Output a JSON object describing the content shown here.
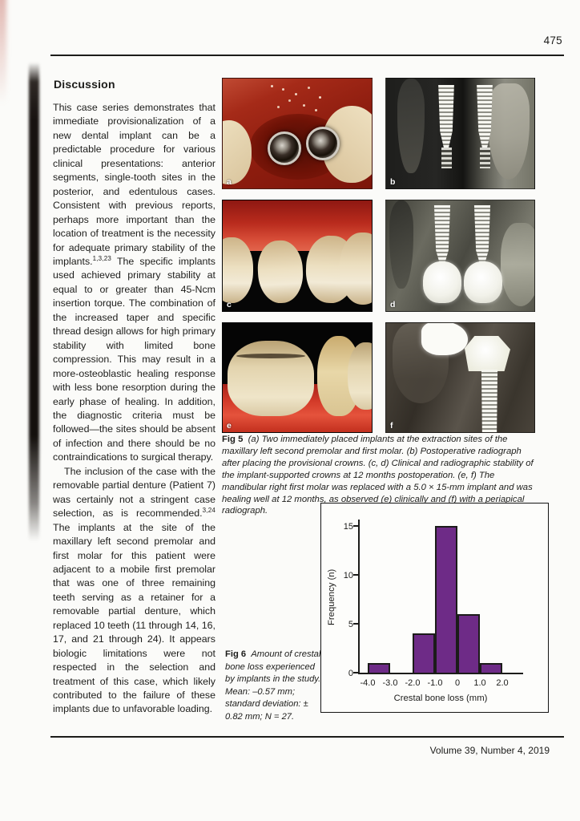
{
  "page": {
    "number": "475",
    "footer": "Volume 39, Number 4, 2019"
  },
  "discussion": {
    "heading": "Discussion",
    "p1_part1": "This case series demonstrates that immediate provisionalization of a new dental implant can be a predictable procedure for various clinical presentations: anterior segments, single-tooth sites in the posterior, and edentulous cases. Consistent with previous reports, perhaps more important than the location of treatment is the necessity for adequate primary stability of the implants.",
    "p1_sup": "1,3,23",
    "p1_part2": " The specific implants used achieved primary stability at equal to or greater than 45-Ncm insertion torque. The combination of the increased taper and specific thread design allows for high primary stability with limited bone compression. This may result in a more-osteoblastic healing response with less bone resorption during the early phase of healing. In addition, the diagnostic criteria must be followed—the sites should be absent of infection and there should be no contraindications to surgical therapy.",
    "p2_part1": "The inclusion of the case with the removable partial denture (Patient 7) was certainly not a stringent case selection, as is recommended.",
    "p2_sup": "3,24",
    "p2_part2": " The implants at the site of the maxillary left second premolar and first molar for this patient were adjacent to a mobile first premolar that was one of three remaining teeth serving as a retainer for a removable partial denture, which replaced 10 teeth (11 through 14, 16, 17, and 21 through 24). It appears biologic limitations were not respected in the selection and treatment of this case, which likely contributed to the failure of these implants due to unfavorable loading."
  },
  "figure5": {
    "label": "Fig 5",
    "caption": "(a) Two immediately placed implants at the extraction sites of the maxillary left second premolar and first molar. (b) Postoperative radiograph after placing the provisional crowns. (c, d) Clinical and radiographic stability of the implant-supported crowns at 12 months postoperation. (e, f) The mandibular right first molar was replaced with a 5.0 × 15-mm implant and was healing well at 12 months, as observed (e) clinically and (f) with a periapical radiograph.",
    "panel_labels": [
      "a",
      "b",
      "c",
      "d",
      "e",
      "f"
    ]
  },
  "figure6": {
    "label": "Fig 6",
    "caption": "Amount of crestal bone loss experienced by implants in the study. Mean: –0.57 mm; standard deviation: ± 0.82 mm; N = 27."
  },
  "chart_data": {
    "type": "bar",
    "title": "",
    "xlabel": "Crestal bone loss (mm)",
    "ylabel": "Frequency (n)",
    "bin_edges": [
      -4.0,
      -3.0,
      -2.0,
      -1.0,
      0.0,
      1.0,
      2.0
    ],
    "values": [
      1,
      0,
      4,
      15,
      6,
      1
    ],
    "x_ticks": [
      "-4.0",
      "-3.0",
      "-2.0",
      "-1.0",
      "0",
      "1.0",
      "2.0"
    ],
    "y_ticks": [
      0,
      5,
      10,
      15
    ],
    "ylim": [
      0,
      15.8
    ],
    "xlim": [
      -4.35,
      3.0
    ],
    "grid": false,
    "legend": "none",
    "bar_color": "#6e2b87",
    "bar_border_color": "#1c1c1a",
    "n_total": 27
  }
}
